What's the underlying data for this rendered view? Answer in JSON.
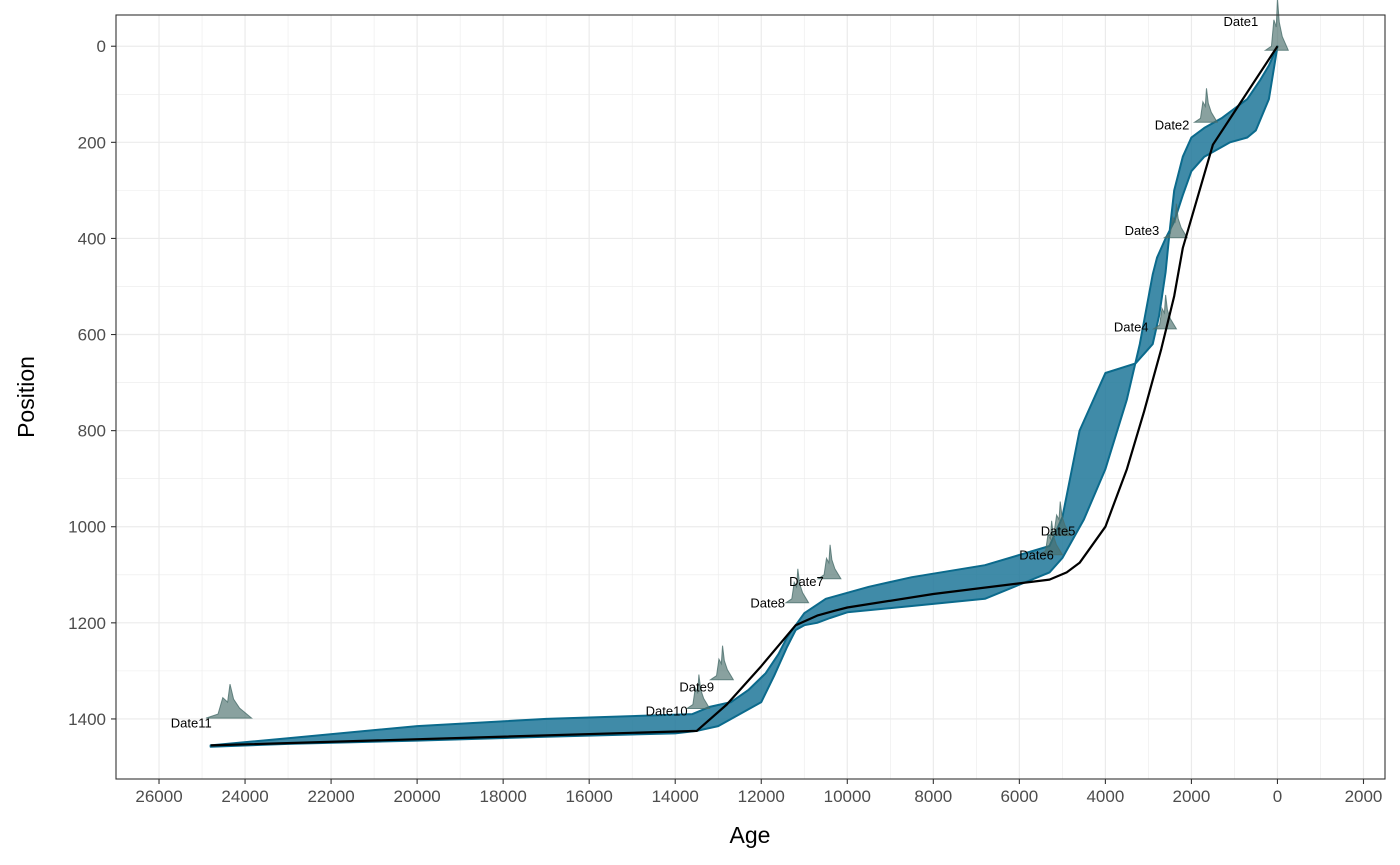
{
  "chart_data": {
    "type": "line",
    "title": "",
    "xlabel": "Age",
    "ylabel": "Position",
    "x_reversed": true,
    "y_reversed": true,
    "xlim": [
      -2500,
      27000
    ],
    "ylim": [
      1525,
      -65
    ],
    "x_ticks": [
      {
        "value": 26000,
        "label": "26000"
      },
      {
        "value": 24000,
        "label": "24000"
      },
      {
        "value": 22000,
        "label": "22000"
      },
      {
        "value": 20000,
        "label": "20000"
      },
      {
        "value": 18000,
        "label": "18000"
      },
      {
        "value": 16000,
        "label": "16000"
      },
      {
        "value": 14000,
        "label": "14000"
      },
      {
        "value": 12000,
        "label": "12000"
      },
      {
        "value": 10000,
        "label": "10000"
      },
      {
        "value": 8000,
        "label": "8000"
      },
      {
        "value": 6000,
        "label": "6000"
      },
      {
        "value": 4000,
        "label": "4000"
      },
      {
        "value": 2000,
        "label": "2000"
      },
      {
        "value": 0,
        "label": "0"
      },
      {
        "value": -2000,
        "label": "2000"
      }
    ],
    "y_ticks": [
      {
        "value": 0,
        "label": "0"
      },
      {
        "value": 200,
        "label": "200"
      },
      {
        "value": 400,
        "label": "400"
      },
      {
        "value": 600,
        "label": "600"
      },
      {
        "value": 800,
        "label": "800"
      },
      {
        "value": 1000,
        "label": "1000"
      },
      {
        "value": 1200,
        "label": "1200"
      },
      {
        "value": 1400,
        "label": "1400"
      }
    ],
    "grid": true,
    "colors": {
      "ribbon_fill": "#1f7799",
      "ribbon_stroke": "#0b6a8c",
      "median_line": "#000000",
      "density": "#4a6e6c",
      "grid": "#ebebeb",
      "panel_border": "#333333"
    },
    "median_line": {
      "x": [
        0,
        1500,
        2200,
        2400,
        2700,
        3100,
        3500,
        4000,
        4400,
        4600,
        4900,
        5300,
        8000,
        10000,
        10300,
        10700,
        11200,
        12000,
        12800,
        13500,
        24800
      ],
      "y": [
        0,
        205,
        420,
        520,
        630,
        760,
        880,
        1000,
        1050,
        1075,
        1095,
        1110,
        1140,
        1168,
        1175,
        1185,
        1205,
        1290,
        1370,
        1425,
        1455
      ]
    },
    "ribbon_lower": {
      "x": [
        0,
        200,
        400,
        700,
        1000,
        1300,
        1700,
        2000,
        2200,
        2400,
        2500,
        2600,
        2750,
        2900,
        3100,
        3300,
        4000,
        4600,
        5000,
        5300,
        6800,
        8500,
        9500,
        10500,
        11000,
        11200,
        11400,
        11600,
        11900,
        12300,
        12700,
        13200,
        13600,
        17000,
        20000,
        23000,
        24800
      ],
      "y": [
        0,
        40,
        70,
        110,
        130,
        150,
        170,
        190,
        230,
        300,
        380,
        470,
        560,
        620,
        640,
        660,
        680,
        800,
        980,
        1040,
        1080,
        1105,
        1125,
        1150,
        1180,
        1205,
        1230,
        1265,
        1305,
        1340,
        1365,
        1375,
        1390,
        1400,
        1415,
        1440,
        1455
      ]
    },
    "ribbon_upper": {
      "x": [
        0,
        200,
        500,
        700,
        1100,
        1300,
        1700,
        2000,
        2200,
        2400,
        2600,
        2700,
        2800,
        2900,
        3200,
        3500,
        4000,
        4500,
        5000,
        5300,
        6800,
        8500,
        10000,
        10400,
        10700,
        11000,
        11200,
        11400,
        11700,
        12000,
        13000,
        13500,
        14000,
        17000,
        20000,
        23000,
        24800
      ],
      "y": [
        0,
        110,
        175,
        190,
        200,
        210,
        230,
        260,
        310,
        365,
        400,
        420,
        440,
        475,
        620,
        735,
        880,
        985,
        1065,
        1095,
        1150,
        1165,
        1178,
        1190,
        1200,
        1205,
        1215,
        1250,
        1310,
        1365,
        1415,
        1425,
        1430,
        1437,
        1445,
        1452,
        1458
      ]
    },
    "dates": [
      {
        "label": "Date1",
        "age": 0,
        "position": 0,
        "label_age": 850,
        "label_position": -50
      },
      {
        "label": "Date2",
        "age": 1650,
        "position": 150,
        "label_age": 2450,
        "label_position": 165
      },
      {
        "label": "Date3",
        "age": 2350,
        "position": 390,
        "label_age": 3150,
        "label_position": 385
      },
      {
        "label": "Date4",
        "age": 2600,
        "position": 580,
        "label_age": 3400,
        "label_position": 585
      },
      {
        "label": "Date5",
        "age": 5050,
        "position": 1010,
        "label_age": 5100,
        "label_position": 1010
      },
      {
        "label": "Date6",
        "age": 5250,
        "position": 1050,
        "label_age": 5600,
        "label_position": 1060
      },
      {
        "label": "Date7",
        "age": 10400,
        "position": 1100,
        "label_age": 10950,
        "label_position": 1115
      },
      {
        "label": "Date8",
        "age": 11150,
        "position": 1150,
        "label_age": 11850,
        "label_position": 1160
      },
      {
        "label": "Date9",
        "age": 12900,
        "position": 1310,
        "label_age": 13500,
        "label_position": 1335
      },
      {
        "label": "Date10",
        "age": 13450,
        "position": 1370,
        "label_age": 14200,
        "label_position": 1385
      },
      {
        "label": "Date11",
        "age": 24350,
        "position": 1390,
        "label_age": 25250,
        "label_position": 1410
      }
    ]
  }
}
